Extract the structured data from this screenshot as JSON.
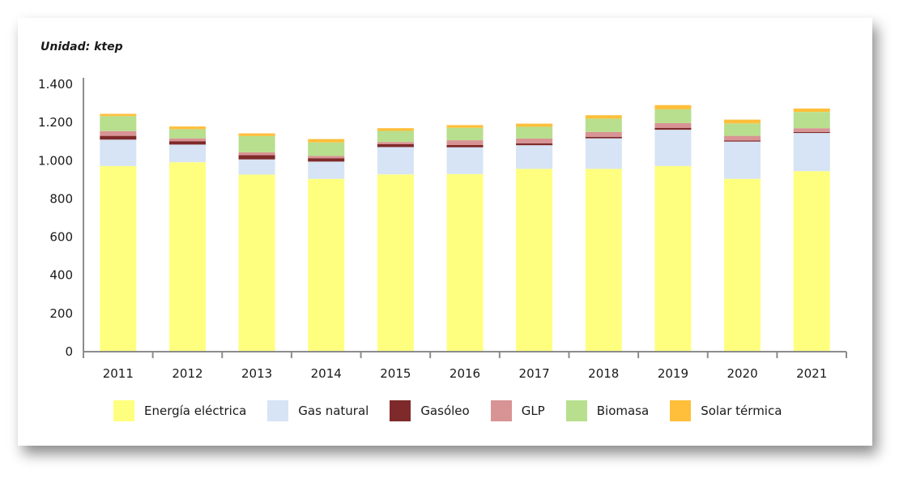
{
  "unit_label": "Unidad: ktep",
  "chart_data": {
    "type": "bar",
    "stacked": true,
    "title": "",
    "xlabel": "",
    "ylabel": "",
    "ylim": [
      0,
      1400
    ],
    "yticks": [
      0,
      200,
      400,
      600,
      800,
      1000,
      1200,
      1400
    ],
    "ytick_labels": [
      "0",
      "200",
      "400",
      "600",
      "800",
      "1.000",
      "1.200",
      "1.400"
    ],
    "grid": false,
    "legend_position": "bottom",
    "categories": [
      "2011",
      "2012",
      "2013",
      "2014",
      "2015",
      "2016",
      "2017",
      "2018",
      "2019",
      "2020",
      "2021"
    ],
    "series": [
      {
        "name": "Energía eléctrica",
        "color": "#ffff7f",
        "values": [
          972,
          992,
          927,
          905,
          928,
          930,
          957,
          957,
          972,
          905,
          945
        ]
      },
      {
        "name": "Gas natural",
        "color": "#d6e4f5",
        "values": [
          138,
          92,
          80,
          90,
          143,
          140,
          124,
          160,
          190,
          195,
          200
        ]
      },
      {
        "name": "Gasóleo",
        "color": "#7f2a2a",
        "values": [
          20,
          18,
          22,
          18,
          15,
          12,
          10,
          8,
          10,
          5,
          5
        ]
      },
      {
        "name": "GLP",
        "color": "#d89494",
        "values": [
          25,
          15,
          15,
          12,
          12,
          25,
          25,
          25,
          25,
          25,
          20
        ]
      },
      {
        "name": "Biomasa",
        "color": "#b7df8e",
        "values": [
          78,
          48,
          85,
          70,
          58,
          65,
          62,
          70,
          72,
          65,
          85
        ]
      },
      {
        "name": "Solar térmica",
        "color": "#ffbf3b",
        "values": [
          12,
          14,
          14,
          18,
          14,
          14,
          16,
          18,
          22,
          20,
          18
        ]
      }
    ]
  }
}
